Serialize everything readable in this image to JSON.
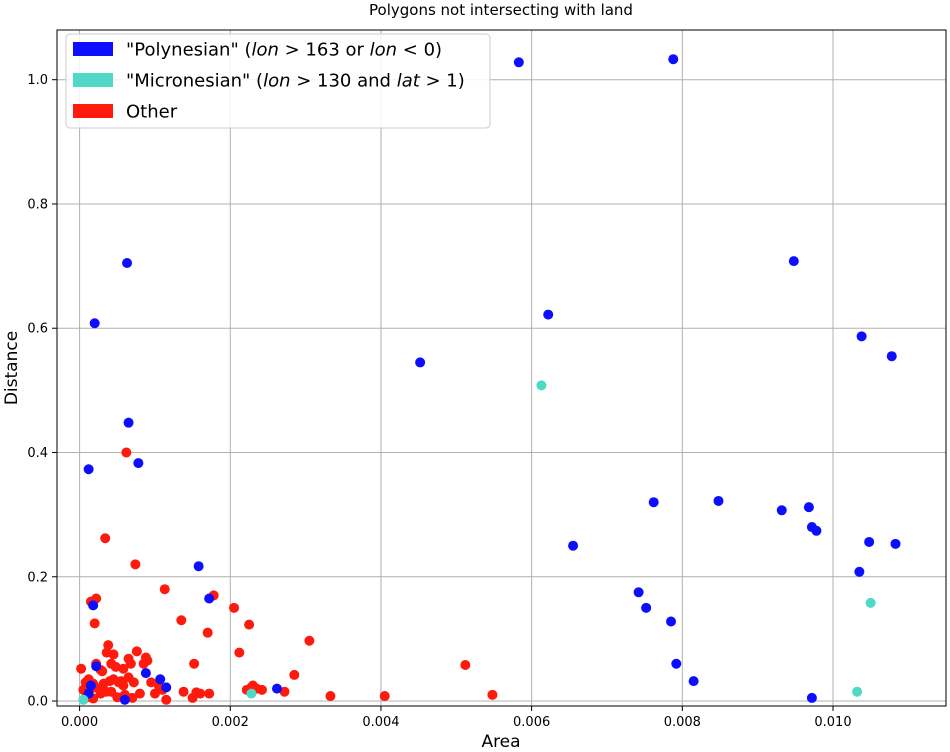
{
  "chart_data": {
    "type": "scatter",
    "title": "Polygons not intersecting with land",
    "xlabel": "Area",
    "ylabel": "Distance",
    "xlim": [
      -0.0003,
      0.0115
    ],
    "ylim": [
      -0.008,
      1.08
    ],
    "xticks": [
      0.0,
      0.002,
      0.004,
      0.006,
      0.008,
      0.01
    ],
    "xtick_labels": [
      "0.000",
      "0.002",
      "0.004",
      "0.006",
      "0.008",
      "0.010"
    ],
    "yticks": [
      0.0,
      0.2,
      0.4,
      0.6,
      0.8,
      1.0
    ],
    "ytick_labels": [
      "0.0",
      "0.2",
      "0.4",
      "0.6",
      "0.8",
      "1.0"
    ],
    "grid": true,
    "legend_position": "top-left",
    "series": [
      {
        "name": "Other",
        "legend": {
          "prefix": "Other",
          "parts": []
        },
        "color": "#ff1a0d",
        "points": [
          [
            2e-05,
            0.052
          ],
          [
            5e-05,
            0.018
          ],
          [
            8e-05,
            0.03
          ],
          [
            0.0001,
            0.01
          ],
          [
            0.00012,
            0.022
          ],
          [
            0.00015,
            0.16
          ],
          [
            0.00018,
            0.004
          ],
          [
            0.0002,
            0.125
          ],
          [
            0.00022,
            0.165
          ],
          [
            0.00025,
            0.02
          ],
          [
            0.00028,
            0.012
          ],
          [
            0.0003,
            0.048
          ],
          [
            0.00032,
            0.028
          ],
          [
            0.00034,
            0.262
          ],
          [
            0.00036,
            0.078
          ],
          [
            0.00038,
            0.09
          ],
          [
            0.0004,
            0.032
          ],
          [
            0.00042,
            0.015
          ],
          [
            0.00045,
            0.075
          ],
          [
            0.00048,
            0.055
          ],
          [
            0.0005,
            0.006
          ],
          [
            0.00052,
            0.03
          ],
          [
            0.00055,
            0.032
          ],
          [
            0.00058,
            0.052
          ],
          [
            0.0006,
            0.01
          ],
          [
            0.00062,
            0.4
          ],
          [
            0.00065,
            0.068
          ],
          [
            0.00068,
            0.06
          ],
          [
            0.0007,
            0.005
          ],
          [
            0.00072,
            0.03
          ],
          [
            0.00074,
            0.22
          ],
          [
            0.00076,
            0.08
          ],
          [
            0.0008,
            0.012
          ],
          [
            0.00085,
            0.06
          ],
          [
            0.00088,
            0.07
          ],
          [
            0.0009,
            0.065
          ],
          [
            0.00095,
            0.03
          ],
          [
            0.001,
            0.012
          ],
          [
            0.00105,
            0.025
          ],
          [
            0.0011,
            0.018
          ],
          [
            0.00113,
            0.18
          ],
          [
            0.00115,
            0.002
          ],
          [
            0.00135,
            0.13
          ],
          [
            0.00138,
            0.015
          ],
          [
            0.0015,
            0.005
          ],
          [
            0.00152,
            0.06
          ],
          [
            0.00155,
            0.014
          ],
          [
            0.0016,
            0.012
          ],
          [
            0.0017,
            0.11
          ],
          [
            0.00172,
            0.012
          ],
          [
            0.00178,
            0.17
          ],
          [
            0.00205,
            0.15
          ],
          [
            0.00212,
            0.078
          ],
          [
            0.00222,
            0.018
          ],
          [
            0.00225,
            0.123
          ],
          [
            0.00228,
            0.022
          ],
          [
            0.0023,
            0.025
          ],
          [
            0.00235,
            0.02
          ],
          [
            0.00242,
            0.018
          ],
          [
            0.00272,
            0.015
          ],
          [
            0.00285,
            0.042
          ],
          [
            0.00305,
            0.097
          ],
          [
            0.00333,
            0.008
          ],
          [
            0.00405,
            0.008
          ],
          [
            0.00512,
            0.058
          ],
          [
            0.00548,
            0.01
          ],
          [
            8e-05,
            0.005
          ],
          [
            0.00015,
            0.02
          ],
          [
            0.00035,
            0.015
          ],
          [
            0.00065,
            0.038
          ],
          [
            0.00022,
            0.06
          ],
          [
            0.00045,
            0.035
          ],
          [
            0.00028,
            0.05
          ],
          [
            0.00012,
            0.035
          ],
          [
            0.00058,
            0.025
          ],
          [
            0.00018,
            0.028
          ],
          [
            0.00042,
            0.06
          ]
        ]
      },
      {
        "name": "\"Polynesian\" (lon > 163 or lon < 0)",
        "legend": {
          "prefix": "\"Polynesian\" (",
          "parts": [
            [
              "lon",
              true
            ],
            [
              " > 163 or ",
              false
            ],
            [
              "lon",
              true
            ],
            [
              " < 0)",
              false
            ]
          ]
        },
        "color": "#0d0dff",
        "points": [
          [
            0.00012,
            0.373
          ],
          [
            0.00018,
            0.154
          ],
          [
            0.0002,
            0.608
          ],
          [
            0.00022,
            0.056
          ],
          [
            0.0006,
            0.002
          ],
          [
            0.00063,
            0.705
          ],
          [
            0.00065,
            0.448
          ],
          [
            0.00078,
            0.383
          ],
          [
            0.00088,
            0.045
          ],
          [
            0.00107,
            0.035
          ],
          [
            0.00115,
            0.022
          ],
          [
            0.00158,
            0.217
          ],
          [
            0.00172,
            0.165
          ],
          [
            0.00262,
            0.02
          ],
          [
            0.00452,
            0.545
          ],
          [
            0.00583,
            1.028
          ],
          [
            0.00622,
            0.622
          ],
          [
            0.00655,
            0.25
          ],
          [
            0.00742,
            0.175
          ],
          [
            0.00752,
            0.15
          ],
          [
            0.00762,
            0.32
          ],
          [
            0.00785,
            0.128
          ],
          [
            0.00788,
            1.033
          ],
          [
            0.00792,
            0.06
          ],
          [
            0.00815,
            0.032
          ],
          [
            0.00848,
            0.322
          ],
          [
            0.00948,
            0.708
          ],
          [
            0.00932,
            0.307
          ],
          [
            0.00968,
            0.312
          ],
          [
            0.00972,
            0.28
          ],
          [
            0.00978,
            0.274
          ],
          [
            0.00972,
            0.005
          ],
          [
            0.01035,
            0.208
          ],
          [
            0.01038,
            0.587
          ],
          [
            0.01048,
            0.256
          ],
          [
            0.01078,
            0.555
          ],
          [
            0.01083,
            0.253
          ],
          [
            0.00012,
            0.012
          ],
          [
            0.00015,
            0.025
          ]
        ]
      },
      {
        "name": "\"Micronesian\" (lon > 130 and lat > 1)",
        "legend": {
          "prefix": "\"Micronesian\" (",
          "parts": [
            [
              "lon",
              true
            ],
            [
              " > 130 and ",
              false
            ],
            [
              "lat",
              true
            ],
            [
              " > 1)",
              false
            ]
          ]
        },
        "color": "#4dd9c6",
        "points": [
          [
            5e-05,
            0.002
          ],
          [
            0.00228,
            0.012
          ],
          [
            0.00613,
            0.508
          ],
          [
            0.01032,
            0.015
          ],
          [
            0.0105,
            0.158
          ]
        ]
      }
    ],
    "legend_order": [
      1,
      2,
      0
    ]
  }
}
